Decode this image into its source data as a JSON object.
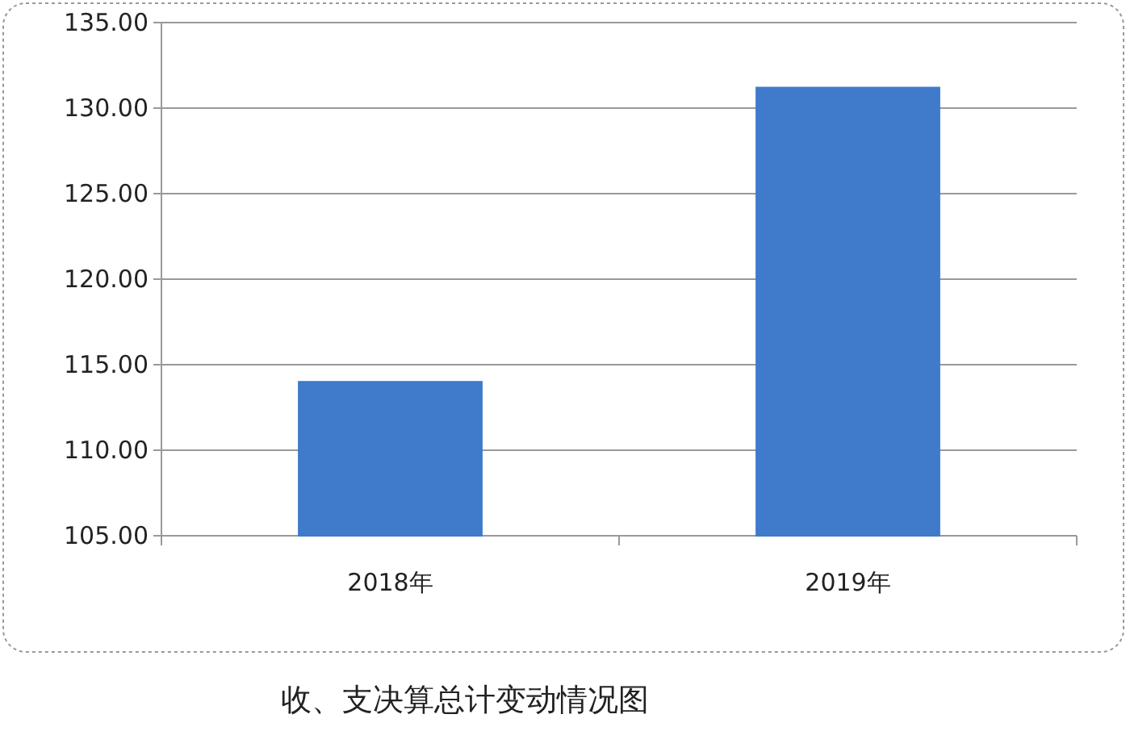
{
  "chart_data": {
    "type": "bar",
    "title": "收、支决算总计变动情况图",
    "categories": [
      "2018年",
      "2019年"
    ],
    "values": [
      114,
      131.2
    ],
    "color": "#3f7acb",
    "ylim": [
      105,
      135
    ],
    "yticks": [
      {
        "value": 105,
        "label": "105.00"
      },
      {
        "value": 110,
        "label": "110.00"
      },
      {
        "value": 115,
        "label": "115.00"
      },
      {
        "value": 120,
        "label": "120.00"
      },
      {
        "value": 125,
        "label": "125.00"
      },
      {
        "value": 130,
        "label": "130.00"
      },
      {
        "value": 135,
        "label": "135.00"
      }
    ],
    "grid": "y"
  }
}
